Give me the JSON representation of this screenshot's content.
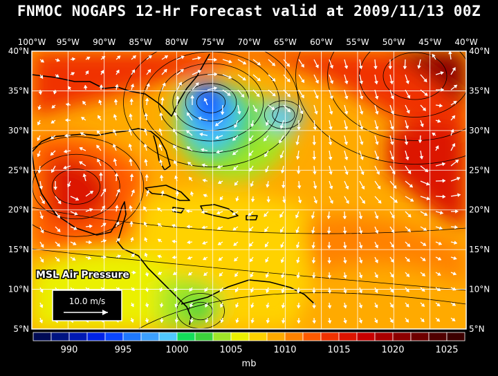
{
  "title": "FNMOC NOGAPS 12-Hr Forecast valid at 2009/11/13 00Z",
  "field_label": "MSL Air Pressure",
  "wind_scale": {
    "label": "10.0 m/s"
  },
  "lon_labels": [
    "100°W",
    "95°W",
    "90°W",
    "85°W",
    "80°W",
    "75°W",
    "70°W",
    "65°W",
    "60°W",
    "55°W",
    "50°W",
    "45°W",
    "40°W"
  ],
  "lat_labels": [
    "40°N",
    "35°N",
    "30°N",
    "25°N",
    "20°N",
    "15°N",
    "10°N",
    "5°N"
  ],
  "colorbar": {
    "unit": "mb",
    "tick_labels": [
      "990",
      "995",
      "1000",
      "1005",
      "1010",
      "1015",
      "1020",
      "1025"
    ],
    "colors": [
      "#000a55",
      "#001482",
      "#0019b4",
      "#0023e6",
      "#0a46ff",
      "#1e78ff",
      "#3ca0ff",
      "#50c8ff",
      "#14dc5a",
      "#3cd23c",
      "#a0e628",
      "#ebf000",
      "#ffd200",
      "#ffaa00",
      "#ff8200",
      "#ff5a00",
      "#f03200",
      "#dc1400",
      "#c80000",
      "#aa0000",
      "#8c0000",
      "#6e0000",
      "#500000",
      "#3c0000"
    ]
  },
  "map_features": {
    "low_centers_mb": [
      996,
      1004
    ],
    "high_centers_mb": [
      1020,
      1022
    ]
  },
  "colors": {
    "background": "#000000",
    "grid": "#ffffff",
    "coast": "#000000",
    "wind_vectors": "#ffffff"
  }
}
